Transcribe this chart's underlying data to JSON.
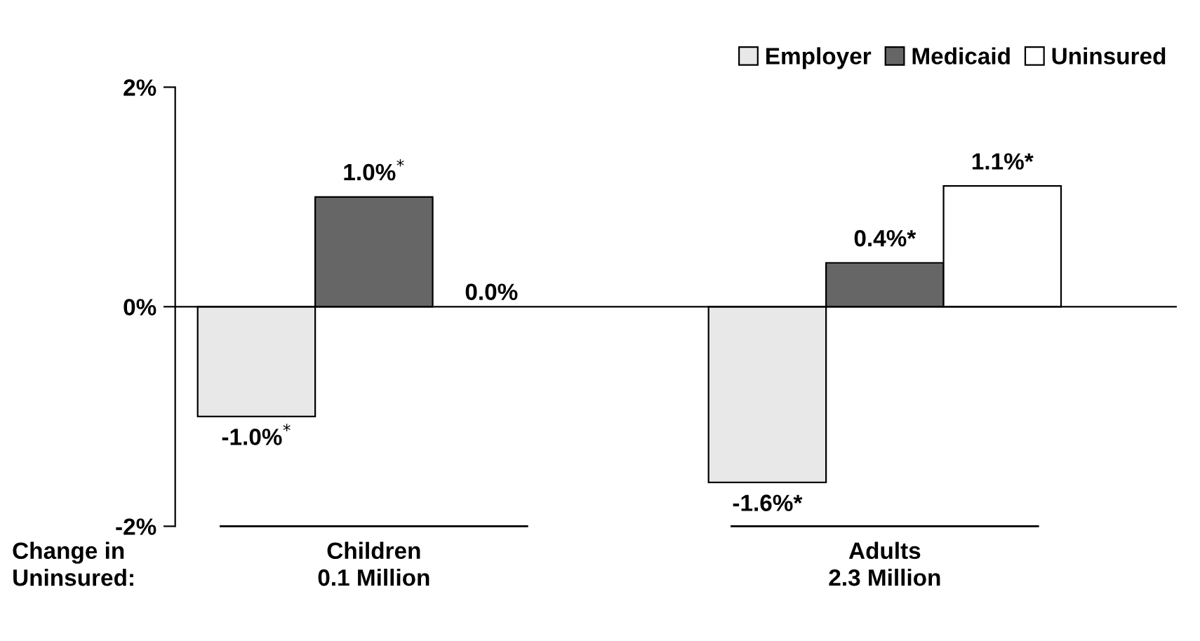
{
  "chart_data": {
    "type": "bar",
    "categories": [
      "Children\n0.1 Million",
      "Adults\n2.3 Million"
    ],
    "series": [
      {
        "name": "Employer",
        "color": "#e8e8e8",
        "values": [
          -1.0,
          -1.6
        ],
        "value_labels": [
          "-1.0%$^{*}$",
          "-1.6%*"
        ]
      },
      {
        "name": "Medicaid",
        "color": "#666666",
        "values": [
          1.0,
          0.4
        ],
        "value_labels": [
          "1.0%$^{*}$",
          "0.4%*"
        ]
      },
      {
        "name": "Uninsured",
        "color": "#ffffff",
        "values": [
          0.0,
          1.1
        ],
        "value_labels": [
          "0.0%",
          "1.1%*"
        ]
      }
    ],
    "ylim": [
      -2,
      2
    ],
    "yticks": [
      {
        "value": -2,
        "label": "-2%"
      },
      {
        "value": 0,
        "label": "0%"
      },
      {
        "value": 2,
        "label": "2%"
      }
    ],
    "legend": "top right",
    "annotations": [
      "Change in\nUninsured:"
    ]
  }
}
